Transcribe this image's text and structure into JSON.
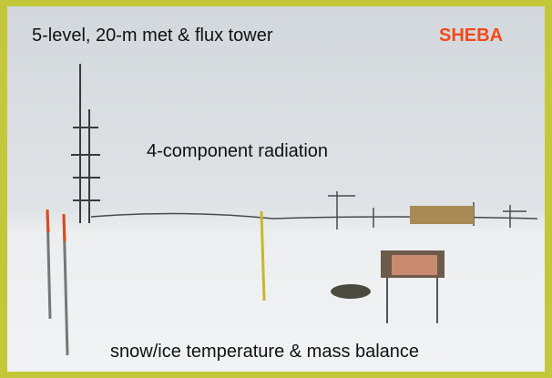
{
  "labels": {
    "tower": "5-level, 20-m met & flux tower",
    "site": "SHEBA",
    "radiation": "4-component radiation",
    "snow": "snow/ice temperature & mass balance"
  }
}
